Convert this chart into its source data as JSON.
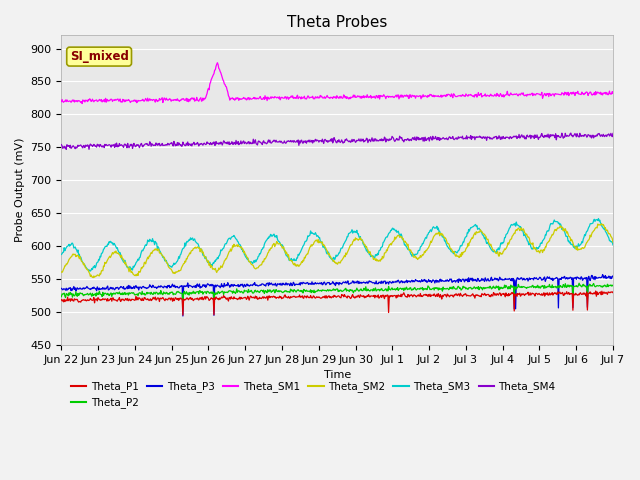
{
  "title": "Theta Probes",
  "ylabel": "Probe Output (mV)",
  "xlabel": "Time",
  "annotation": "SI_mixed",
  "ylim": [
    450,
    920
  ],
  "yticks": [
    450,
    500,
    550,
    600,
    650,
    700,
    750,
    800,
    850,
    900
  ],
  "x_labels": [
    "Jun 22",
    "Jun 23",
    "Jun 24",
    "Jun 25",
    "Jun 26",
    "Jun 27",
    "Jun 28",
    "Jun 29",
    "Jun 30",
    "Jul 1",
    "Jul 2",
    "Jul 3",
    "Jul 4",
    "Jul 5",
    "Jul 6",
    "Jul 7"
  ],
  "n_points": 800,
  "colors": {
    "Theta_P1": "#dd0000",
    "Theta_P2": "#00cc00",
    "Theta_P3": "#0000dd",
    "Theta_SM1": "#ff00ff",
    "Theta_SM2": "#cccc00",
    "Theta_SM3": "#00cccc",
    "Theta_SM4": "#8800cc"
  },
  "bg_color": "#e8e8e8",
  "grid_color": "#ffffff",
  "annotation_bg": "#ffff99",
  "annotation_fg": "#880000"
}
